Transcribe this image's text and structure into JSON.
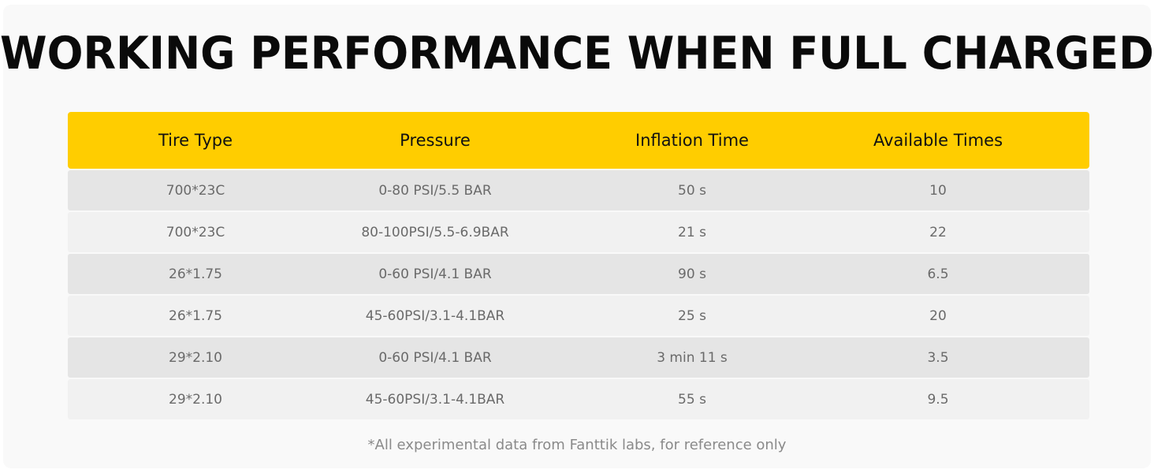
{
  "title": "WORKING PERFORMANCE WHEN FULL CHARGED",
  "colors": {
    "header_bg": "#ffcd00",
    "row_dark": "#e5e5e5",
    "row_light": "#f1f1f1"
  },
  "table": {
    "headers": [
      "Tire Type",
      "Pressure",
      "Inflation Time",
      "Available Times"
    ],
    "rows": [
      [
        "700*23C",
        "0-80 PSI/5.5 BAR",
        "50 s",
        "10"
      ],
      [
        "700*23C",
        "80-100PSI/5.5-6.9BAR",
        "21 s",
        "22"
      ],
      [
        "26*1.75",
        "0-60 PSI/4.1 BAR",
        "90 s",
        "6.5"
      ],
      [
        "26*1.75",
        "45-60PSI/3.1-4.1BAR",
        "25 s",
        "20"
      ],
      [
        "29*2.10",
        "0-60 PSI/4.1 BAR",
        "3 min 11 s",
        "3.5"
      ],
      [
        "29*2.10",
        "45-60PSI/3.1-4.1BAR",
        "55 s",
        "9.5"
      ]
    ]
  },
  "footnote": "*All experimental data from Fanttik labs, for reference only"
}
